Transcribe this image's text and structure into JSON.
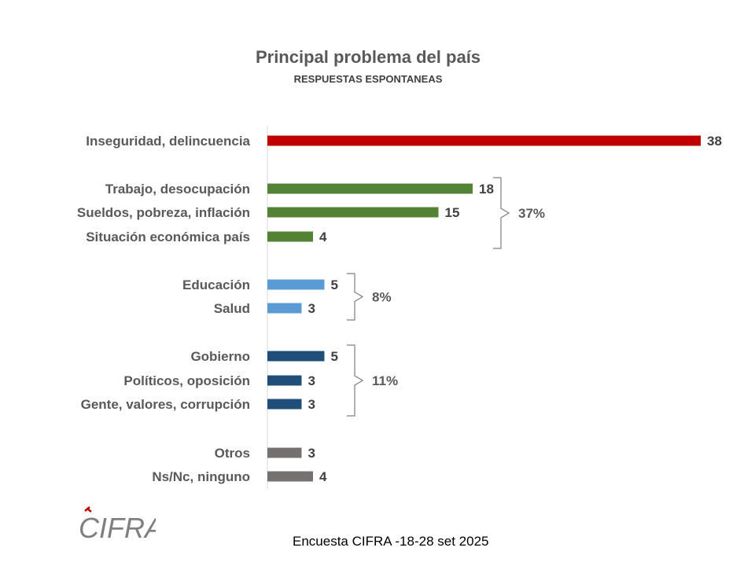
{
  "title": "Principal problema del país",
  "subtitle": "RESPUESTAS ESPONTANEAS",
  "footer": "Encuesta CIFRA -18-28 set 2025",
  "logo_text": "CIFRA",
  "chart_data": {
    "type": "bar",
    "orientation": "horizontal",
    "title": "Principal problema del país",
    "subtitle": "RESPUESTAS ESPONTANEAS",
    "xlim": [
      0,
      38
    ],
    "categories": [
      "Inseguridad, delincuencia",
      "Trabajo, desocupación",
      "Sueldos, pobreza, inflación",
      "Situación económica país",
      "Educación",
      "Salud",
      "Gobierno",
      "Políticos, oposición",
      "Gente, valores, corrupción",
      "Otros",
      "Ns/Nc, ninguno"
    ],
    "values": [
      38,
      18,
      15,
      4,
      5,
      3,
      5,
      3,
      3,
      3,
      4
    ],
    "colors": [
      "#C00000",
      "#548235",
      "#548235",
      "#548235",
      "#5B9BD5",
      "#5B9BD5",
      "#1F4E79",
      "#1F4E79",
      "#1F4E79",
      "#767171",
      "#767171"
    ],
    "groups": [
      {
        "label": "37%",
        "from": 1,
        "to": 3
      },
      {
        "label": "8%",
        "from": 4,
        "to": 5
      },
      {
        "label": "11%",
        "from": 6,
        "to": 8
      }
    ]
  }
}
